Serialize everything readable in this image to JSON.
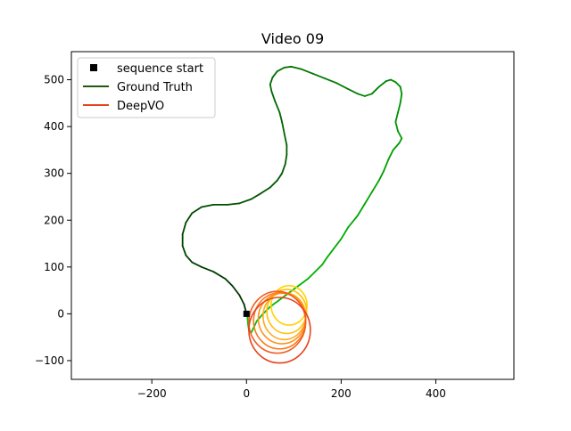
{
  "chart_data": {
    "type": "line",
    "title": "Video 09",
    "xlabel": "",
    "ylabel": "",
    "xlim": [
      -370,
      565
    ],
    "ylim": [
      -140,
      560
    ],
    "xticks": [
      -200,
      0,
      200,
      400
    ],
    "yticks": [
      -100,
      0,
      100,
      200,
      300,
      400,
      500
    ],
    "grid": false,
    "legend_position": "top-left",
    "legend": [
      {
        "label": "sequence start",
        "kind": "marker",
        "color": "#000000"
      },
      {
        "label": "Ground Truth",
        "kind": "line",
        "color": "#1f5a0f"
      },
      {
        "label": "DeepVO",
        "kind": "line",
        "color": "#e8421a"
      }
    ],
    "start_point": [
      0,
      0
    ],
    "ground_truth": {
      "color_start": "#003300",
      "color_end": "#00cc00",
      "points": [
        [
          0,
          0
        ],
        [
          -5,
          20
        ],
        [
          -15,
          40
        ],
        [
          -30,
          60
        ],
        [
          -45,
          75
        ],
        [
          -70,
          90
        ],
        [
          -95,
          100
        ],
        [
          -115,
          110
        ],
        [
          -128,
          125
        ],
        [
          -135,
          145
        ],
        [
          -135,
          170
        ],
        [
          -128,
          195
        ],
        [
          -115,
          215
        ],
        [
          -95,
          228
        ],
        [
          -70,
          233
        ],
        [
          -40,
          233
        ],
        [
          -15,
          236
        ],
        [
          10,
          245
        ],
        [
          30,
          257
        ],
        [
          50,
          270
        ],
        [
          65,
          285
        ],
        [
          75,
          300
        ],
        [
          82,
          320
        ],
        [
          85,
          340
        ],
        [
          85,
          360
        ],
        [
          80,
          385
        ],
        [
          75,
          410
        ],
        [
          70,
          430
        ],
        [
          60,
          455
        ],
        [
          53,
          475
        ],
        [
          50,
          490
        ],
        [
          55,
          505
        ],
        [
          65,
          518
        ],
        [
          80,
          526
        ],
        [
          95,
          528
        ],
        [
          115,
          523
        ],
        [
          140,
          513
        ],
        [
          165,
          503
        ],
        [
          190,
          493
        ],
        [
          215,
          480
        ],
        [
          235,
          470
        ],
        [
          250,
          465
        ],
        [
          265,
          470
        ],
        [
          280,
          485
        ],
        [
          295,
          497
        ],
        [
          305,
          500
        ],
        [
          315,
          495
        ],
        [
          325,
          485
        ],
        [
          328,
          470
        ],
        [
          325,
          450
        ],
        [
          320,
          430
        ],
        [
          315,
          410
        ],
        [
          320,
          390
        ],
        [
          328,
          375
        ],
        [
          323,
          365
        ],
        [
          310,
          350
        ],
        [
          300,
          330
        ],
        [
          290,
          305
        ],
        [
          280,
          285
        ],
        [
          265,
          260
        ],
        [
          250,
          235
        ],
        [
          235,
          210
        ],
        [
          215,
          185
        ],
        [
          200,
          160
        ],
        [
          185,
          140
        ],
        [
          170,
          120
        ],
        [
          160,
          105
        ],
        [
          145,
          90
        ],
        [
          130,
          75
        ],
        [
          110,
          60
        ],
        [
          90,
          45
        ],
        [
          70,
          30
        ],
        [
          50,
          15
        ],
        [
          35,
          0
        ],
        [
          22,
          -15
        ],
        [
          15,
          -30
        ],
        [
          10,
          -40
        ],
        [
          5,
          -35
        ],
        [
          3,
          -20
        ],
        [
          2,
          -8
        ],
        [
          0,
          0
        ]
      ]
    },
    "deepvo_loops": [
      {
        "cx": 90,
        "cy": 18,
        "rx": 38,
        "ry": 42,
        "color": "#ffd500"
      },
      {
        "cx": 85,
        "cy": 5,
        "rx": 42,
        "ry": 47,
        "color": "#ffc10a"
      },
      {
        "cx": 80,
        "cy": -5,
        "rx": 45,
        "ry": 50,
        "color": "#ffa91a"
      },
      {
        "cx": 75,
        "cy": -10,
        "rx": 50,
        "ry": 54,
        "color": "#ff9020"
      },
      {
        "cx": 70,
        "cy": -15,
        "rx": 55,
        "ry": 60,
        "color": "#f97a20"
      },
      {
        "cx": 65,
        "cy": -18,
        "rx": 60,
        "ry": 66,
        "color": "#f06020"
      },
      {
        "cx": 70,
        "cy": -35,
        "rx": 65,
        "ry": 70,
        "color": "#e8421a"
      }
    ]
  }
}
